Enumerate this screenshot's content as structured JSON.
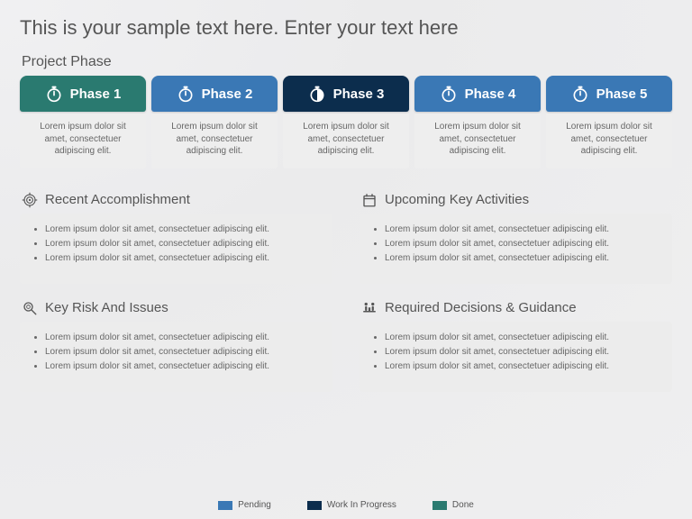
{
  "title": "This is your sample text here. Enter your text here",
  "subtitle": "Project Phase",
  "colors": {
    "done": "#2a7a70",
    "pending": "#3a78b5",
    "progress": "#0c2d4d",
    "card_bg": "#eeeeee",
    "section_bg": "#ececec",
    "text_muted": "#666666"
  },
  "phases": [
    {
      "label": "Phase 1",
      "status": "done",
      "color": "#2a7a70",
      "icon": "stopwatch",
      "desc": "Lorem ipsum dolor sit amet, consectetuer adipiscing elit."
    },
    {
      "label": "Phase 2",
      "status": "pending",
      "color": "#3a78b5",
      "icon": "stopwatch",
      "desc": "Lorem ipsum dolor sit amet, consectetuer adipiscing elit."
    },
    {
      "label": "Phase 3",
      "status": "progress",
      "color": "#0c2d4d",
      "icon": "stopwatch-half",
      "desc": "Lorem ipsum dolor sit amet, consectetuer adipiscing elit."
    },
    {
      "label": "Phase 4",
      "status": "pending",
      "color": "#3a78b5",
      "icon": "stopwatch",
      "desc": "Lorem ipsum dolor sit amet, consectetuer adipiscing elit."
    },
    {
      "label": "Phase 5",
      "status": "pending",
      "color": "#3a78b5",
      "icon": "stopwatch",
      "desc": "Lorem ipsum dolor sit amet, consectetuer adipiscing elit."
    }
  ],
  "sections": [
    {
      "title": "Recent Accomplishment",
      "icon": "target",
      "items": [
        "Lorem ipsum dolor sit amet, consectetuer adipiscing elit.",
        "Lorem ipsum dolor sit amet, consectetuer adipiscing elit.",
        "Lorem ipsum dolor sit amet, consectetuer adipiscing elit."
      ]
    },
    {
      "title": "Upcoming Key Activities",
      "icon": "calendar",
      "items": [
        "Lorem ipsum dolor sit amet, consectetuer adipiscing elit.",
        "Lorem ipsum dolor sit amet, consectetuer adipiscing elit.",
        "Lorem ipsum dolor sit amet, consectetuer adipiscing elit."
      ]
    },
    {
      "title": "Key Risk And Issues",
      "icon": "magnifier",
      "items": [
        "Lorem ipsum dolor sit amet, consectetuer adipiscing elit.",
        "Lorem ipsum dolor sit amet, consectetuer adipiscing elit.",
        "Lorem ipsum dolor sit amet, consectetuer adipiscing elit."
      ]
    },
    {
      "title": "Required Decisions & Guidance",
      "icon": "meeting",
      "items": [
        "Lorem ipsum dolor sit amet, consectetuer adipiscing elit.",
        "Lorem ipsum dolor sit amet, consectetuer adipiscing elit.",
        "Lorem ipsum dolor sit amet, consectetuer adipiscing elit."
      ]
    }
  ],
  "legend": [
    {
      "label": "Pending",
      "color": "#3a78b5"
    },
    {
      "label": "Work In Progress",
      "color": "#0c2d4d"
    },
    {
      "label": "Done",
      "color": "#2a7a70"
    }
  ]
}
